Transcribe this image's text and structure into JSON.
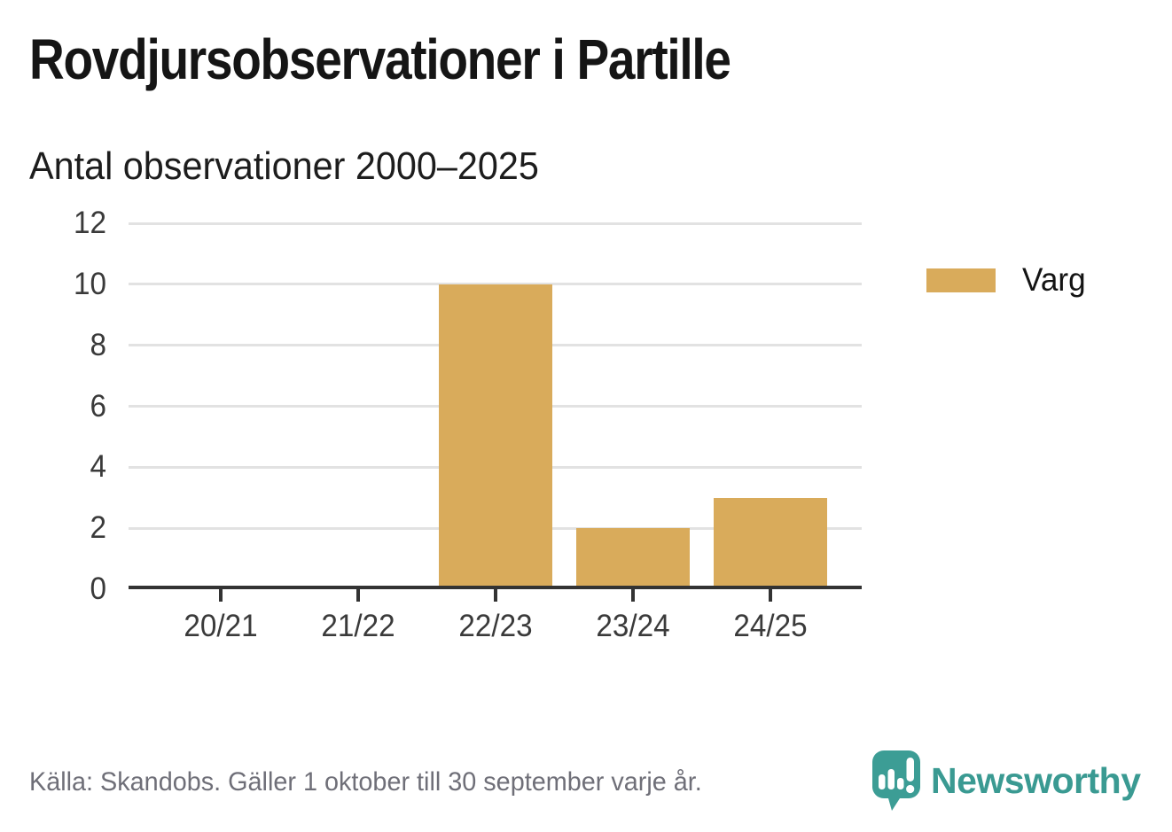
{
  "header": {
    "title": "Rovdjursobservationer i Partille",
    "subtitle": "Antal observationer 2000–2025"
  },
  "chart_data": {
    "type": "bar",
    "title": "Rovdjursobservationer i Partille",
    "subtitle": "Antal observationer 2000–2025",
    "categories": [
      "20/21",
      "21/22",
      "22/23",
      "23/24",
      "24/25"
    ],
    "series": [
      {
        "name": "Varg",
        "values": [
          0,
          0,
          10,
          2,
          3
        ],
        "color": "#d9ab5b"
      }
    ],
    "xlabel": "",
    "ylabel": "",
    "ylim": [
      0,
      12
    ],
    "yticks": [
      0,
      2,
      4,
      6,
      8,
      10,
      12
    ],
    "grid": true,
    "legend_position": "right"
  },
  "legend": {
    "items": [
      {
        "label": "Varg",
        "color": "#d9ab5b"
      }
    ]
  },
  "footer": {
    "source": "Källa: Skandobs. Gäller 1 oktober till 30 september varje år.",
    "brand": "Newsworthy"
  },
  "colors": {
    "bar": "#d9ab5b",
    "axis": "#333333",
    "grid": "#e2e2e2",
    "teal": "#3c9d95",
    "muted_text": "#6f6f78"
  }
}
